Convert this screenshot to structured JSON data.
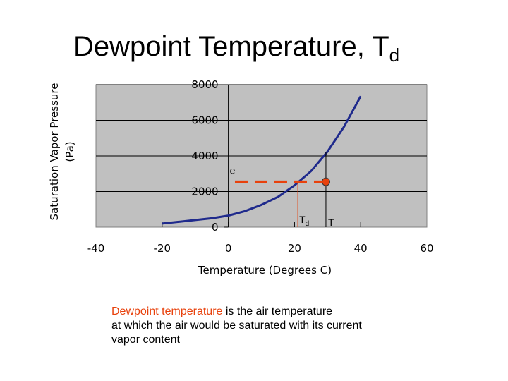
{
  "title": {
    "main": "Dewpoint Temperature, T",
    "sub": "d"
  },
  "caption": {
    "highlight": "Dewpoint temperature",
    "line1_rest": " is the air temperature",
    "line2": "at which the air would be saturated with its current",
    "line3": "vapor content"
  },
  "colors": {
    "curve": "#1f2a8c",
    "plot_bg": "#c0c0c0",
    "highlight": "#e8410c",
    "grid": "#000000"
  },
  "chart_data": {
    "type": "line",
    "xlabel": "Temperature (Degrees C)",
    "ylabel_line1": "Saturation Vapor Pressure",
    "ylabel_line2": "(Pa)",
    "xlim": [
      -40,
      60
    ],
    "ylim": [
      0,
      8000
    ],
    "x_ticks": [
      "-40",
      "-20",
      "0",
      "20",
      "40",
      "60"
    ],
    "y_ticks": [
      "0",
      "2000",
      "4000",
      "6000",
      "8000"
    ],
    "grid": true,
    "series": [
      {
        "x": [
          -20,
          -15,
          -10,
          -5,
          0,
          5,
          10,
          15,
          20,
          25,
          30,
          35,
          40
        ],
        "values": [
          200,
          300,
          400,
          500,
          650,
          900,
          1250,
          1700,
          2350,
          3150,
          4250,
          5650,
          7350
        ]
      }
    ],
    "annotations": {
      "e_label": "e",
      "td_label": "T",
      "td_sub": "d",
      "t_label": "T",
      "e_value": 2550,
      "td_value": 21,
      "t_value": 29.5
    }
  }
}
